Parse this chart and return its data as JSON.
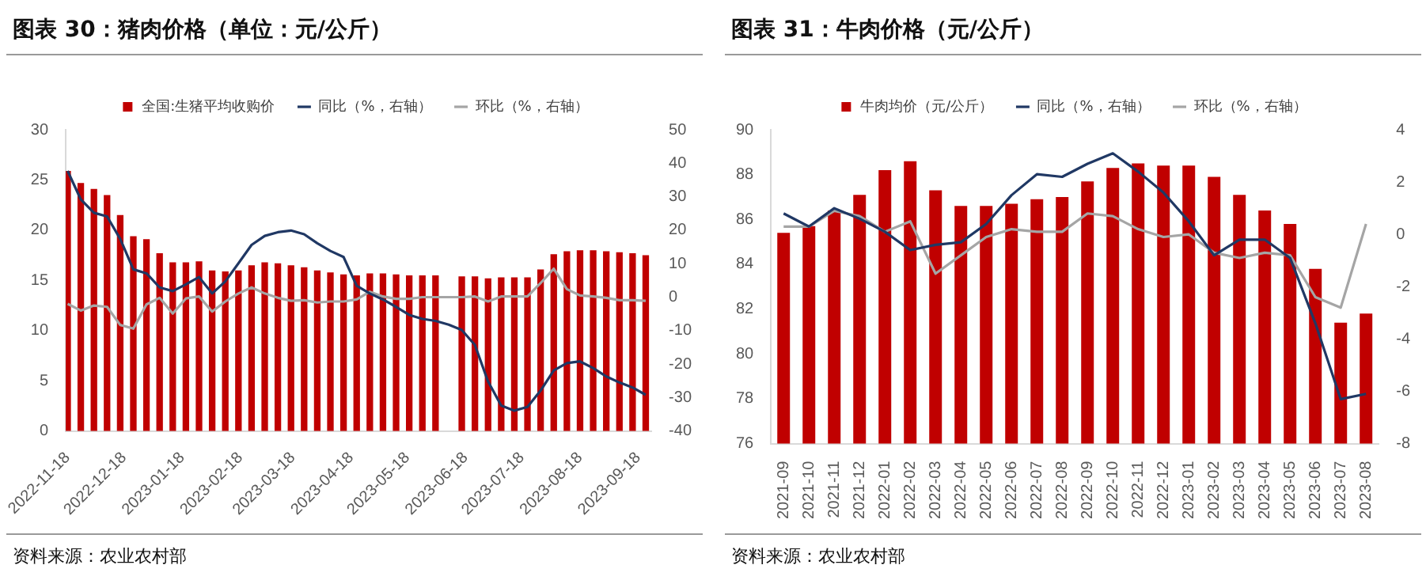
{
  "chart_data": [
    {
      "type": "bar",
      "title": "图表 30：猪肉价格（单位：元/公斤）",
      "annotations": [
        "资料来源：农业农村部"
      ],
      "x": [
        "2022-11-18",
        "2022-11-25",
        "2022-12-02",
        "2022-12-09",
        "2022-12-16",
        "2022-12-23",
        "2022-12-30",
        "2023-01-06",
        "2023-01-13",
        "2023-01-20",
        "2023-01-27",
        "2023-02-03",
        "2023-02-10",
        "2023-02-17",
        "2023-02-24",
        "2023-03-03",
        "2023-03-10",
        "2023-03-17",
        "2023-03-24",
        "2023-03-31",
        "2023-04-07",
        "2023-04-14",
        "2023-04-21",
        "2023-04-28",
        "2023-05-05",
        "2023-05-12",
        "2023-05-19",
        "2023-05-26",
        "2023-06-02",
        "2023-06-09",
        "2023-06-16",
        "2023-06-23",
        "2023-06-30",
        "2023-07-07",
        "2023-07-14",
        "2023-07-21",
        "2023-07-28",
        "2023-08-04",
        "2023-08-11",
        "2023-08-18",
        "2023-08-25",
        "2023-09-01",
        "2023-09-08",
        "2023-09-15",
        "2023-09-22"
      ],
      "series": [
        {
          "name": "全国:生猪平均收购价",
          "color": "#c00000",
          "values": [
            25.9,
            24.7,
            24.1,
            23.5,
            21.5,
            19.4,
            19.1,
            17.7,
            16.8,
            16.8,
            16.9,
            16.0,
            15.9,
            16.0,
            16.5,
            16.8,
            16.7,
            16.5,
            16.3,
            16.0,
            15.8,
            15.6,
            15.5,
            15.7,
            15.7,
            15.6,
            15.5,
            15.5,
            15.5,
            null,
            15.4,
            15.4,
            15.2,
            15.3,
            15.3,
            15.3,
            16.1,
            17.6,
            17.9,
            18.0,
            18.0,
            17.9,
            17.8,
            17.7,
            17.5
          ]
        },
        {
          "name": "同比（%，右轴）",
          "type": "line",
          "axis": "y2",
          "color": "#203864",
          "values": [
            37.7,
            29.2,
            25.2,
            24.1,
            17.4,
            8.3,
            7.1,
            2.9,
            1.8,
            3.8,
            6.0,
            1.1,
            4.7,
            10.1,
            15.6,
            18.3,
            19.4,
            19.9,
            18.8,
            16.1,
            13.8,
            12.0,
            3.4,
            1.1,
            -0.7,
            -2.9,
            -5.3,
            -6.5,
            -7.1,
            -8.2,
            -9.8,
            -14.3,
            -25.2,
            -32.4,
            -33.9,
            -32.8,
            -27.9,
            -21.9,
            -19.7,
            -19.2,
            -21.2,
            -23.7,
            -25.5,
            -27.0,
            -29.2
          ]
        },
        {
          "name": "环比（%，右轴）",
          "type": "line",
          "axis": "y2",
          "color": "#a5a5a5",
          "values": [
            -2.0,
            -4.0,
            -2.5,
            -2.9,
            -8.3,
            -9.4,
            -2.2,
            -0.2,
            -4.9,
            -0.4,
            0.2,
            -4.3,
            -1.3,
            1.1,
            2.9,
            1.1,
            -0.2,
            -1.1,
            -0.9,
            -1.6,
            -1.3,
            -1.3,
            -0.7,
            1.6,
            0.2,
            -0.5,
            -0.5,
            0.0,
            0.0,
            0.0,
            0.0,
            0.2,
            -1.3,
            0.2,
            0.2,
            0.2,
            4.2,
            8.5,
            2.4,
            0.5,
            0.2,
            -0.2,
            -0.9,
            -0.9,
            -1.1
          ]
        }
      ],
      "xlim": [
        "2022-11-17",
        "2023-09-25"
      ],
      "xticks": [
        "2022-11-18",
        "2022-12-18",
        "2023-01-18",
        "2023-02-18",
        "2023-03-18",
        "2023-04-18",
        "2023-05-18",
        "2023-06-18",
        "2023-07-18",
        "2023-08-18",
        "2023-09-18"
      ],
      "ylim": [
        0,
        30
      ],
      "yticks": [
        0,
        5,
        10,
        15,
        20,
        25,
        30
      ],
      "y2lim": [
        -40,
        50
      ],
      "y2ticks": [
        -40,
        -30,
        -20,
        -10,
        0,
        10,
        20,
        30,
        40,
        50
      ],
      "grid": false,
      "legend": "top",
      "marker": "none"
    },
    {
      "type": "bar",
      "title": "图表 31：牛肉价格（元/公斤）",
      "annotations": [
        "资料来源：农业农村部"
      ],
      "categories": [
        "2021-09",
        "2021-10",
        "2021-11",
        "2021-12",
        "2022-01",
        "2022-02",
        "2022-03",
        "2022-04",
        "2022-05",
        "2022-06",
        "2022-07",
        "2022-08",
        "2022-09",
        "2022-10",
        "2022-11",
        "2022-12",
        "2023-01",
        "2023-02",
        "2023-03",
        "2023-04",
        "2023-05",
        "2023-06",
        "2023-07",
        "2023-08"
      ],
      "series": [
        {
          "name": "牛肉均价（元/公斤）",
          "color": "#c00000",
          "values": [
            85.4,
            85.7,
            86.4,
            87.1,
            88.2,
            88.6,
            87.3,
            86.6,
            86.6,
            86.7,
            86.9,
            87.0,
            87.7,
            88.3,
            88.5,
            88.4,
            88.4,
            87.9,
            87.1,
            86.4,
            85.8,
            83.8,
            81.4,
            81.8
          ]
        },
        {
          "name": "同比（%，右轴）",
          "type": "line",
          "axis": "y2",
          "color": "#203864",
          "values": [
            0.8,
            0.3,
            1.0,
            0.6,
            0.1,
            -0.6,
            -0.4,
            -0.3,
            0.4,
            1.5,
            2.3,
            2.2,
            2.7,
            3.1,
            2.4,
            1.6,
            0.5,
            -0.8,
            -0.2,
            -0.2,
            -0.9,
            -3.4,
            -6.3,
            -6.1
          ]
        },
        {
          "name": "环比（%，右轴）",
          "type": "line",
          "axis": "y2",
          "color": "#a5a5a5",
          "values": [
            0.3,
            0.3,
            0.9,
            0.7,
            0.1,
            0.5,
            -1.5,
            -0.8,
            -0.1,
            0.2,
            0.1,
            0.1,
            0.8,
            0.7,
            0.2,
            -0.1,
            0.0,
            -0.7,
            -0.9,
            -0.7,
            -0.8,
            -2.4,
            -2.8,
            0.4
          ]
        }
      ],
      "ylim": [
        76,
        90
      ],
      "yticks": [
        76,
        78,
        80,
        82,
        84,
        86,
        88,
        90
      ],
      "y2lim": [
        -8,
        4
      ],
      "y2ticks": [
        -8,
        -6,
        -4,
        -2,
        0,
        2,
        4
      ],
      "grid": false,
      "legend": "top",
      "marker": "none"
    }
  ]
}
